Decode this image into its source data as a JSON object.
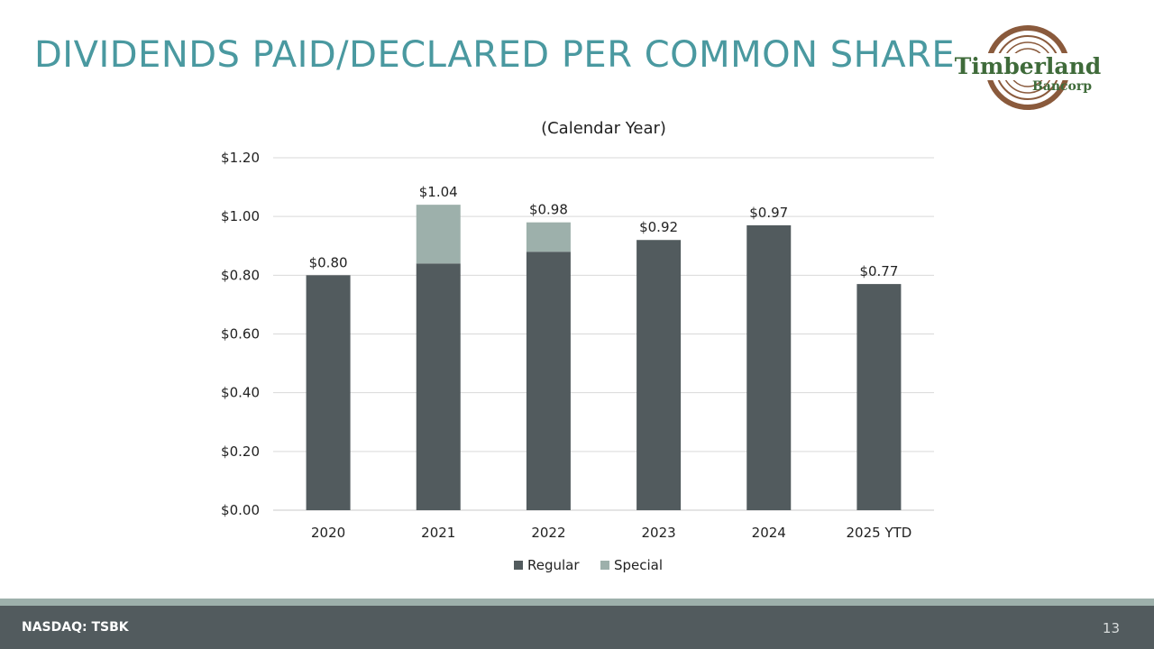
{
  "slide": {
    "title": "DIVIDENDS PAID/DECLARED PER COMMON SHARE",
    "footer_left": "NASDAQ: TSBK",
    "page_number": "13"
  },
  "logo": {
    "line1": "Timberland",
    "line2": "Bancorp",
    "colors": {
      "text": "#3f6b3a",
      "rings": "#8a5a3c"
    }
  },
  "chart_data": {
    "type": "bar",
    "stacked": true,
    "title": "(Calendar Year)",
    "xlabel": "",
    "ylabel": "",
    "categories": [
      "2020",
      "2021",
      "2022",
      "2023",
      "2024",
      "2025 YTD"
    ],
    "series": [
      {
        "name": "Regular",
        "color": "#525b5e",
        "values": [
          0.8,
          0.84,
          0.88,
          0.92,
          0.97,
          0.77
        ]
      },
      {
        "name": "Special",
        "color": "#9db0ab",
        "values": [
          0,
          0.2,
          0.1,
          0,
          0,
          0
        ]
      }
    ],
    "totals_labels": [
      "$0.80",
      "$1.04",
      "$0.98",
      "$0.92",
      "$0.97",
      "$0.77"
    ],
    "ylim": [
      0,
      1.2
    ],
    "yticks": [
      0,
      0.2,
      0.4,
      0.6,
      0.8,
      1.0,
      1.2
    ],
    "ytick_labels": [
      "$0.00",
      "$0.20",
      "$0.40",
      "$0.60",
      "$0.80",
      "$1.00",
      "$1.20"
    ],
    "grid": true,
    "legend_position": "bottom-center"
  }
}
